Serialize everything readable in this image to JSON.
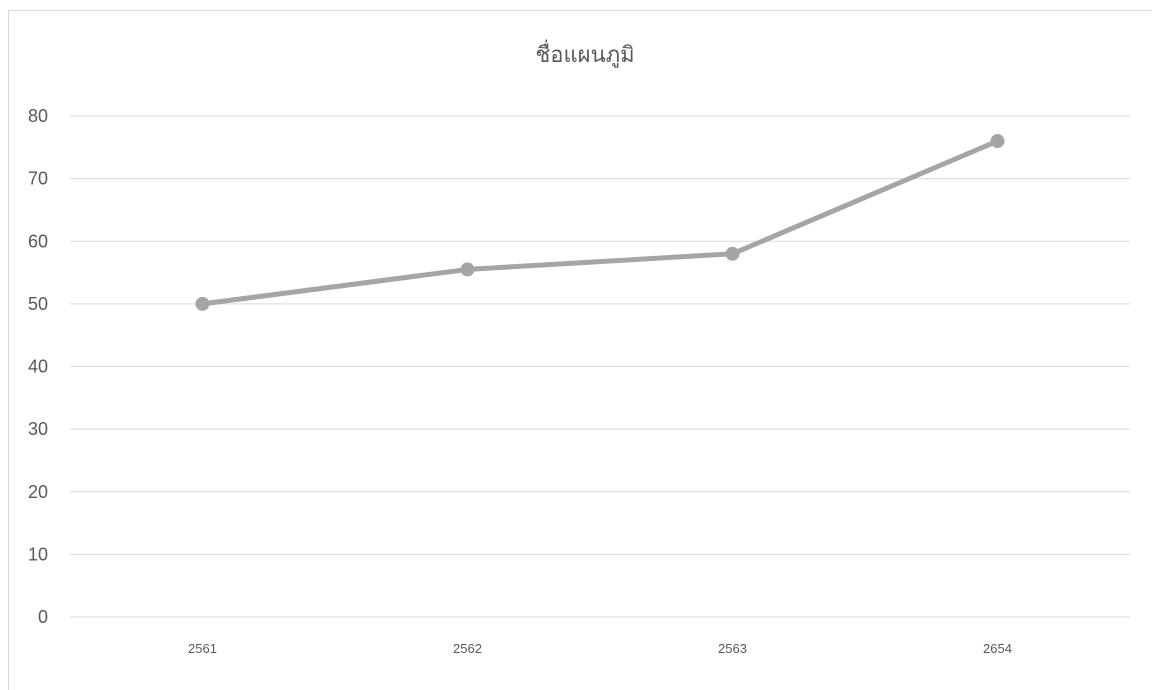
{
  "chart_data": {
    "type": "line",
    "title": "ชื่อแผนภูมิ",
    "xlabel": "",
    "ylabel": "",
    "categories": [
      "2561",
      "2562",
      "2563",
      "2654"
    ],
    "series": [
      {
        "values": [
          50,
          55.5,
          58,
          76
        ]
      }
    ],
    "ylim": [
      0,
      80
    ],
    "yticks": [
      "0",
      "10",
      "20",
      "30",
      "40",
      "50",
      "60",
      "70",
      "80"
    ],
    "grid": true,
    "legend": "none",
    "colors": {
      "line": "#a5a5a5",
      "marker": "#a5a5a5",
      "grid": "#d9d9d9",
      "text": "#595959"
    }
  }
}
